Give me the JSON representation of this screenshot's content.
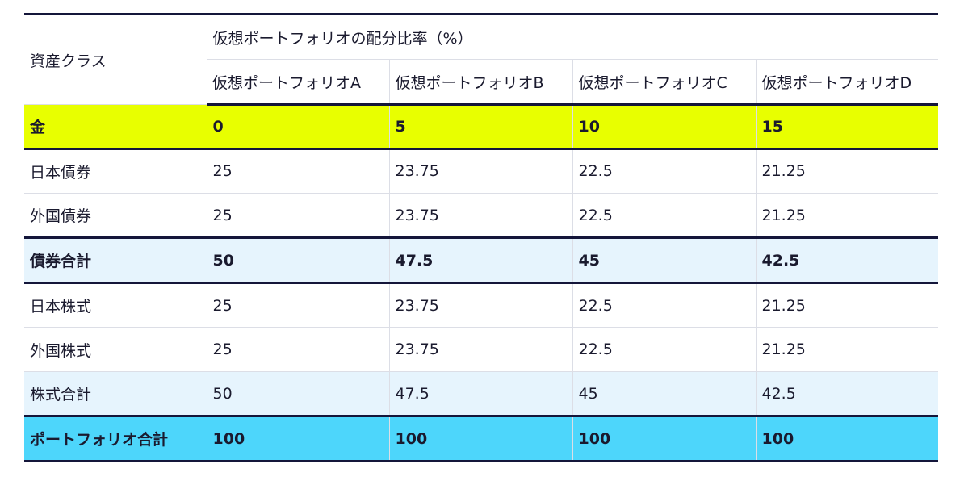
{
  "table": {
    "header": {
      "asset_class": "資産クラス",
      "group_title": "仮想ポートフォリオの配分比率（%）",
      "portfolios": [
        "仮想ポートフォリオA",
        "仮想ポートフォリオB",
        "仮想ポートフォリオC",
        "仮想ポートフォリオD"
      ]
    },
    "rows": [
      {
        "label": "金",
        "values": [
          "0",
          "5",
          "10",
          "15"
        ]
      },
      {
        "label": "日本債券",
        "values": [
          "25",
          "23.75",
          "22.5",
          "21.25"
        ]
      },
      {
        "label": "外国債券",
        "values": [
          "25",
          "23.75",
          "22.5",
          "21.25"
        ]
      },
      {
        "label": "債券合計",
        "values": [
          "50",
          "47.5",
          "45",
          "42.5"
        ]
      },
      {
        "label": "日本株式",
        "values": [
          "25",
          "23.75",
          "22.5",
          "21.25"
        ]
      },
      {
        "label": "外国株式",
        "values": [
          "25",
          "23.75",
          "22.5",
          "21.25"
        ]
      },
      {
        "label": "株式合計",
        "values": [
          "50",
          "47.5",
          "45",
          "42.5"
        ]
      },
      {
        "label": "ポートフォリオ合計",
        "values": [
          "100",
          "100",
          "100",
          "100"
        ]
      }
    ]
  },
  "colors": {
    "gold_row": "#e8ff00",
    "subtotal_row": "#e6f4fd",
    "total_row": "#4dd6fb",
    "rule": "#14163a",
    "grid": "#dcdee6"
  }
}
